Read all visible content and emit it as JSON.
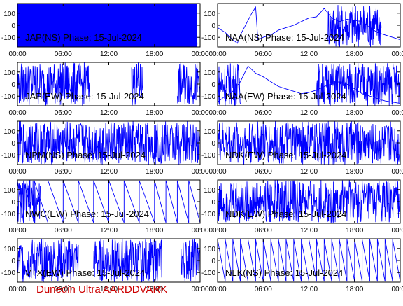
{
  "footer_label": "Dunedin Ultra AARDDVARK",
  "colors": {
    "trace": "#0000ff",
    "axis": "#000000",
    "footer": "#cc0000"
  },
  "chart_data": [
    {
      "type": "line",
      "title": "JAP(NS) Phase: 15-Jul-2024",
      "x_ticks": [
        "00:00",
        "06:00",
        "12:00",
        "18:00",
        "00:00"
      ],
      "y_ticks": [
        "100",
        "0",
        "-100"
      ],
      "xlim": [
        0,
        24
      ],
      "ylim": [
        -180,
        180
      ],
      "trace": {
        "kind": "dense",
        "segments": [
          [
            0,
            23.6
          ]
        ]
      }
    },
    {
      "type": "line",
      "title": "NAA(NS) Phase: 15-Jul-2024",
      "x_ticks": [
        "00:00",
        "06:00",
        "12:00",
        "18:00",
        "00:00"
      ],
      "y_ticks": [
        "100",
        "0",
        "-100"
      ],
      "xlim": [
        0,
        24
      ],
      "ylim": [
        -180,
        180
      ],
      "trace": {
        "kind": "mixed",
        "points": [
          [
            0,
            -20
          ],
          [
            1,
            -60
          ],
          [
            2,
            -120
          ],
          [
            2.6,
            -150
          ],
          [
            3,
            -80
          ],
          [
            3.5,
            -20
          ],
          [
            4,
            40
          ],
          [
            4.5,
            100
          ],
          [
            5,
            150
          ],
          [
            5.3,
            -120
          ],
          [
            6,
            -100
          ],
          [
            7,
            -80
          ],
          [
            8,
            -40
          ],
          [
            9,
            -20
          ],
          [
            10,
            0
          ],
          [
            11,
            30
          ],
          [
            12,
            60
          ],
          [
            13,
            70
          ],
          [
            14,
            140
          ],
          [
            15,
            60
          ],
          [
            16,
            30
          ],
          [
            17,
            50
          ],
          [
            19,
            30
          ],
          [
            20,
            -20
          ],
          [
            21,
            -60
          ],
          [
            22,
            -80
          ],
          [
            23,
            -100
          ],
          [
            24,
            -120
          ]
        ],
        "dense": [
          [
            14.5,
            21.5
          ]
        ]
      }
    },
    {
      "type": "line",
      "title": "JAP(EW) Phase: 15-Jul-2024",
      "x_ticks": [
        "00:00",
        "06:00",
        "12:00",
        "18:00",
        "00:00"
      ],
      "y_ticks": [
        "100",
        "0",
        "-100"
      ],
      "xlim": [
        0,
        24
      ],
      "ylim": [
        -180,
        180
      ],
      "trace": {
        "kind": "dense",
        "segments": [
          [
            0,
            9.5
          ],
          [
            15,
            16.5
          ],
          [
            21,
            24
          ]
        ]
      }
    },
    {
      "type": "line",
      "title": "NAA(EW) Phase: 15-Jul-2024",
      "x_ticks": [
        "00:00",
        "06:00",
        "12:00",
        "18:00",
        "00:00"
      ],
      "y_ticks": [
        "100",
        "0",
        "-100"
      ],
      "xlim": [
        0,
        24
      ],
      "ylim": [
        -180,
        180
      ],
      "trace": {
        "kind": "mixed",
        "points": [
          [
            0,
            -150
          ],
          [
            1,
            -100
          ],
          [
            2,
            -60
          ],
          [
            3,
            20
          ],
          [
            4,
            150
          ],
          [
            4.5,
            120
          ],
          [
            5,
            90
          ],
          [
            6,
            60
          ],
          [
            7,
            20
          ],
          [
            8,
            -20
          ],
          [
            9,
            -40
          ],
          [
            10,
            -60
          ],
          [
            11,
            -80
          ],
          [
            12,
            -70
          ],
          [
            13,
            -50
          ],
          [
            14,
            -20
          ],
          [
            15,
            0
          ],
          [
            16,
            20
          ],
          [
            17,
            0
          ],
          [
            18,
            -40
          ],
          [
            19,
            -80
          ],
          [
            20,
            -100
          ],
          [
            21,
            -120
          ],
          [
            22,
            -140
          ],
          [
            23,
            -150
          ],
          [
            24,
            -160
          ]
        ],
        "dense": [
          [
            0,
            3
          ],
          [
            13,
            24
          ]
        ]
      }
    },
    {
      "type": "line",
      "title": "NPM(NS) Phase: 15-Jul-2024",
      "x_ticks": [
        "00:00",
        "06:00",
        "12:00",
        "18:00",
        "00:00"
      ],
      "y_ticks": [
        "100",
        "0",
        "-100"
      ],
      "xlim": [
        0,
        24
      ],
      "ylim": [
        -180,
        180
      ],
      "trace": {
        "kind": "dense",
        "segments": [
          [
            0,
            24
          ]
        ]
      }
    },
    {
      "type": "line",
      "title": "NDK(EW) Phase: 15-Jul-2024",
      "x_ticks": [
        "00:00",
        "06:00",
        "12:00",
        "18:00",
        "00:00"
      ],
      "y_ticks": [
        "100",
        "0",
        "-100"
      ],
      "xlim": [
        0,
        24
      ],
      "ylim": [
        -180,
        180
      ],
      "trace": {
        "kind": "dense",
        "segments": [
          [
            0,
            24
          ]
        ]
      }
    },
    {
      "type": "line",
      "title": "NWC(EW) Phase: 15-Jul-2024",
      "x_ticks": [
        "00:00",
        "06:00",
        "12:00",
        "18:00",
        "00:00"
      ],
      "y_ticks": [
        "100",
        "0",
        "-100"
      ],
      "xlim": [
        0,
        24
      ],
      "ylim": [
        -180,
        180
      ],
      "trace": {
        "kind": "sawtooth",
        "wraps": [
          0.8,
          2.2,
          4,
          6,
          8,
          10,
          12,
          14,
          16,
          18,
          19.5,
          21,
          22.5,
          24
        ],
        "dense": [
          [
            0,
            3
          ]
        ]
      }
    },
    {
      "type": "line",
      "title": "NDK(EW) Phase: 15-Jul-2024",
      "x_ticks": [
        "00:00",
        "06:00",
        "12:00",
        "18:00",
        "00:00"
      ],
      "y_ticks": [
        "100",
        "0",
        "-100"
      ],
      "xlim": [
        0,
        24
      ],
      "ylim": [
        -180,
        180
      ],
      "trace": {
        "kind": "dense",
        "segments": [
          [
            0,
            24
          ]
        ]
      }
    },
    {
      "type": "line",
      "title": "VTX(EW) Phase: 15-Jul-2024",
      "x_ticks": [
        "00:00",
        "06:00",
        "12:00",
        "18:00",
        "00:00"
      ],
      "y_ticks": [
        "100",
        "0",
        "-100"
      ],
      "xlim": [
        0,
        24
      ],
      "ylim": [
        -180,
        180
      ],
      "trace": {
        "kind": "dense",
        "segments": [
          [
            0,
            8
          ],
          [
            10,
            19
          ],
          [
            21.5,
            24
          ]
        ]
      }
    },
    {
      "type": "line",
      "title": "NLK(NS) Phase: 15-Jul-2024",
      "x_ticks": [
        "00:00",
        "06:00",
        "12:00",
        "18:00",
        "00:00"
      ],
      "y_ticks": [
        "100",
        "0",
        "-100"
      ],
      "xlim": [
        0,
        24
      ],
      "ylim": [
        -180,
        180
      ],
      "trace": {
        "kind": "sawtooth",
        "wraps": [
          1,
          2,
          3,
          4,
          5,
          6,
          7,
          8,
          9,
          10,
          11,
          12,
          13,
          14,
          15,
          16,
          17,
          18,
          19,
          20,
          21,
          22,
          23,
          24
        ],
        "dense": []
      }
    }
  ]
}
